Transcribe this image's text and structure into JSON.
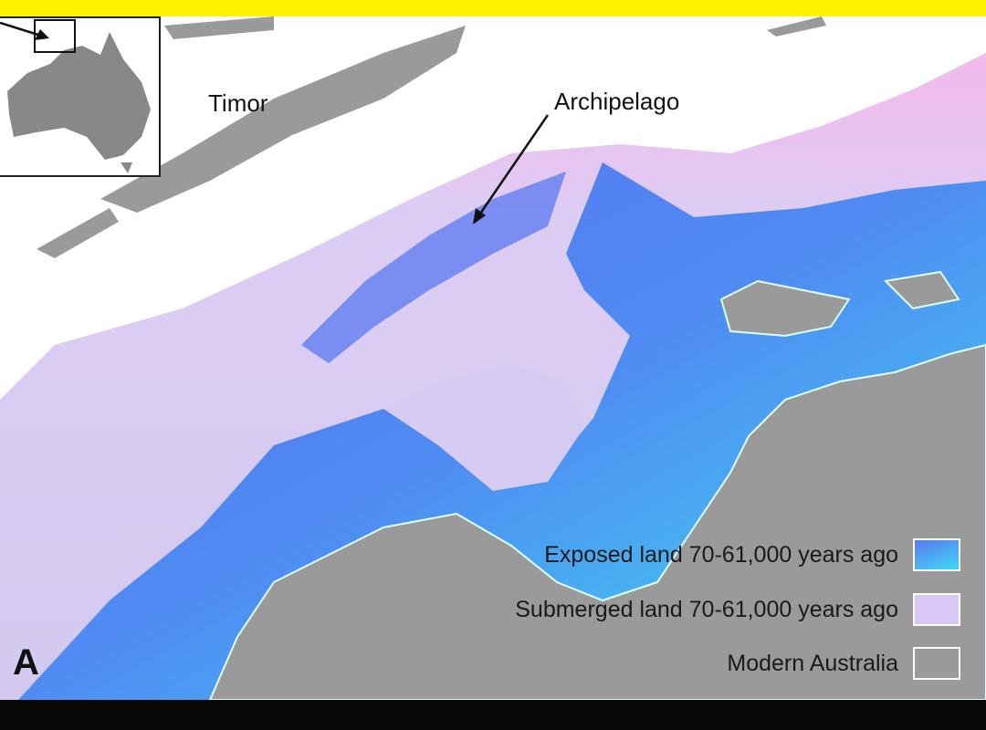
{
  "labels": {
    "timor": "Timor",
    "archipelago": "Archipelago",
    "panel_letter": "A"
  },
  "legend": [
    {
      "label": "Exposed land 70-61,000 years ago",
      "color": "#4fa8f0"
    },
    {
      "label": "Submerged land 70-61,000 years ago",
      "color": "#d8c8f6"
    },
    {
      "label": "Modern Australia",
      "color": "#9a9a9a"
    }
  ],
  "colors": {
    "sea": "#ffffff",
    "modern_land": "#9a9a9a",
    "submerged": "#d6cbf2",
    "submerged_edge": "#f2b8ea",
    "exposed_deep": "#5a78f0",
    "exposed_shallow": "#3fe0f0",
    "top_bar": "#fff200",
    "bottom_bar": "#0a0806"
  },
  "inset": {
    "name": "australia-inset-map"
  }
}
